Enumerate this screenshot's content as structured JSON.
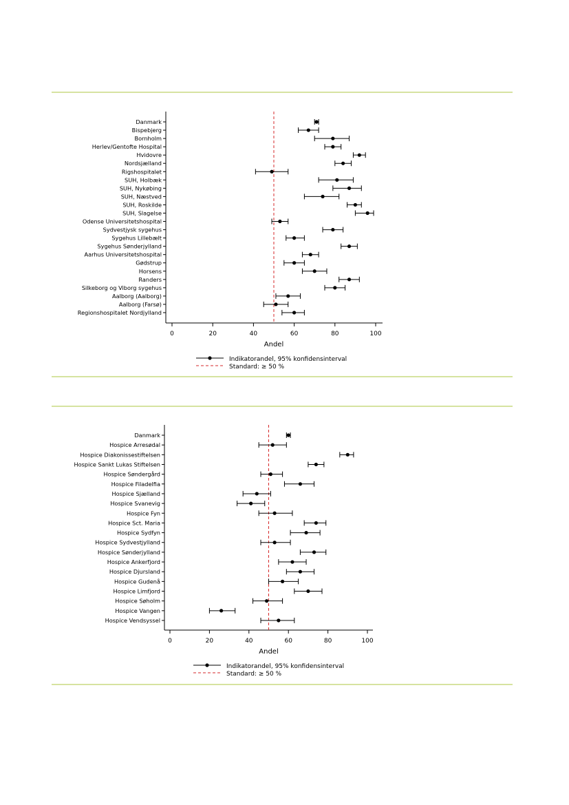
{
  "colors": {
    "rule": "#d6e3a0",
    "standard_line": "#d62728",
    "marker": "#000000"
  },
  "chart_data": [
    {
      "type": "forest",
      "xlabel": "Andel",
      "xlim": [
        0,
        100
      ],
      "xticks": [
        0,
        20,
        40,
        60,
        80,
        100
      ],
      "standard": 50,
      "legend": {
        "series_label": "Indikatorandel, 95% konfidensinterval",
        "standard_label": "Standard: ≥ 50 %"
      },
      "rows": [
        {
          "label": "Danmark",
          "value": 71,
          "low": 70,
          "high": 72
        },
        {
          "label": "Bispebjerg",
          "value": 67,
          "low": 62,
          "high": 72
        },
        {
          "label": "Bornholm",
          "value": 79,
          "low": 70,
          "high": 87
        },
        {
          "label": "Herlev/Gentofte Hospital",
          "value": 79,
          "low": 75,
          "high": 83
        },
        {
          "label": "Hvidovre",
          "value": 92,
          "low": 89,
          "high": 95
        },
        {
          "label": "Nordsjælland",
          "value": 84,
          "low": 80,
          "high": 88
        },
        {
          "label": "Rigshospitalet",
          "value": 49,
          "low": 41,
          "high": 57
        },
        {
          "label": "SUH, Holbæk",
          "value": 81,
          "low": 72,
          "high": 89
        },
        {
          "label": "SUH, Nykøbing",
          "value": 87,
          "low": 79,
          "high": 93
        },
        {
          "label": "SUH, Næstved",
          "value": 74,
          "low": 65,
          "high": 82
        },
        {
          "label": "SUH, Roskilde",
          "value": 90,
          "low": 86,
          "high": 93
        },
        {
          "label": "SUH, Slagelse",
          "value": 96,
          "low": 90,
          "high": 99
        },
        {
          "label": "Odense Universitetshospital",
          "value": 53,
          "low": 49,
          "high": 57
        },
        {
          "label": "Sydvestjysk sygehus",
          "value": 79,
          "low": 74,
          "high": 84
        },
        {
          "label": "Sygehus Lillebælt",
          "value": 60,
          "low": 56,
          "high": 65
        },
        {
          "label": "Sygehus Sønderjylland",
          "value": 87,
          "low": 83,
          "high": 91
        },
        {
          "label": "Aarhus Universitetshospital",
          "value": 68,
          "low": 64,
          "high": 72
        },
        {
          "label": "Gødstrup",
          "value": 60,
          "low": 55,
          "high": 65
        },
        {
          "label": "Horsens",
          "value": 70,
          "low": 64,
          "high": 76
        },
        {
          "label": "Randers",
          "value": 87,
          "low": 82,
          "high": 92
        },
        {
          "label": "Silkeborg og Viborg sygehus",
          "value": 80,
          "low": 75,
          "high": 85
        },
        {
          "label": "Aalborg (Aalborg)",
          "value": 57,
          "low": 51,
          "high": 63
        },
        {
          "label": "Aalborg (Farsø)",
          "value": 51,
          "low": 45,
          "high": 57
        },
        {
          "label": "Regionshospitalet Nordjylland",
          "value": 60,
          "low": 54,
          "high": 65
        }
      ]
    },
    {
      "type": "forest",
      "xlabel": "Andel",
      "xlim": [
        0,
        100
      ],
      "xticks": [
        0,
        20,
        40,
        60,
        80,
        100
      ],
      "standard": 50,
      "legend": {
        "series_label": "Indikatorandel, 95% konfidensinterval",
        "standard_label": "Standard: ≥ 50 %"
      },
      "rows": [
        {
          "label": "Danmark",
          "value": 60,
          "low": 59,
          "high": 61
        },
        {
          "label": "Hospice Arresødal",
          "value": 52,
          "low": 45,
          "high": 59
        },
        {
          "label": "Hospice Diakonissestiftelsen",
          "value": 90,
          "low": 86,
          "high": 93
        },
        {
          "label": "Hospice Sankt Lukas Stiftelsen",
          "value": 74,
          "low": 70,
          "high": 78
        },
        {
          "label": "Hospice Søndergård",
          "value": 51,
          "low": 46,
          "high": 57
        },
        {
          "label": "Hospice Filadelfia",
          "value": 66,
          "low": 58,
          "high": 73
        },
        {
          "label": "Hospice Sjælland",
          "value": 44,
          "low": 37,
          "high": 51
        },
        {
          "label": "Hospice Svanevig",
          "value": 41,
          "low": 34,
          "high": 48
        },
        {
          "label": "Hospice Fyn",
          "value": 53,
          "low": 45,
          "high": 62
        },
        {
          "label": "Hospice Sct. Maria",
          "value": 74,
          "low": 68,
          "high": 79
        },
        {
          "label": "Hospice Sydfyn",
          "value": 69,
          "low": 61,
          "high": 76
        },
        {
          "label": "Hospice Sydvestjylland",
          "value": 53,
          "low": 46,
          "high": 61
        },
        {
          "label": "Hospice Sønderjylland",
          "value": 73,
          "low": 66,
          "high": 79
        },
        {
          "label": "Hospice Ankerfjord",
          "value": 62,
          "low": 55,
          "high": 69
        },
        {
          "label": "Hospice Djursland",
          "value": 66,
          "low": 59,
          "high": 73
        },
        {
          "label": "Hospice Gudenå",
          "value": 57,
          "low": 50,
          "high": 65
        },
        {
          "label": "Hospice Limfjord",
          "value": 70,
          "low": 63,
          "high": 77
        },
        {
          "label": "Hospice Søholm",
          "value": 49,
          "low": 42,
          "high": 57
        },
        {
          "label": "Hospice Vangen",
          "value": 26,
          "low": 20,
          "high": 33
        },
        {
          "label": "Hospice Vendsyssel",
          "value": 55,
          "low": 46,
          "high": 63
        }
      ]
    }
  ]
}
